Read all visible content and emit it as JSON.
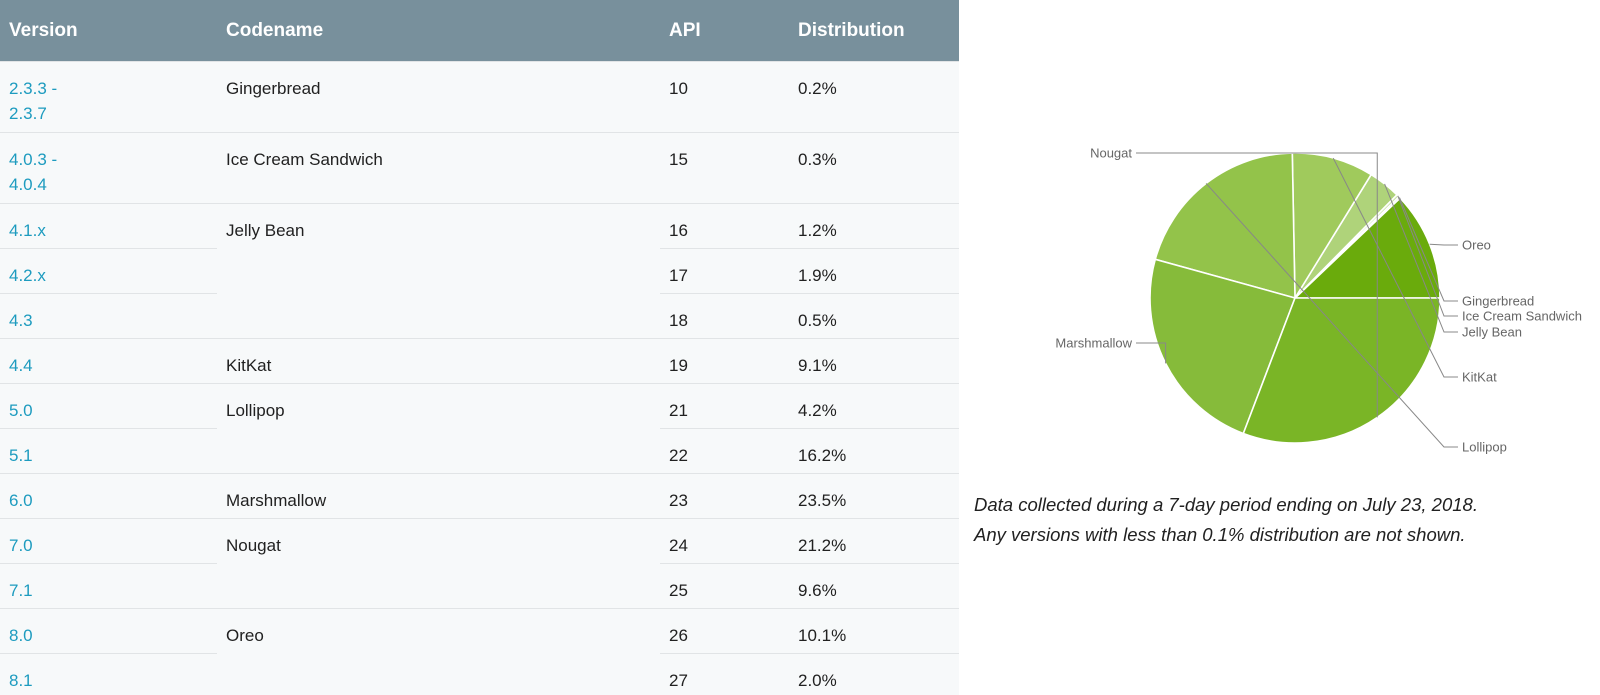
{
  "table": {
    "headers": [
      "Version",
      "Codename",
      "API",
      "Distribution"
    ],
    "rows": [
      {
        "version": "2.3.3 -\n2.3.7",
        "codename": "Gingerbread",
        "codename_span": 1,
        "api": "10",
        "dist": "0.2%"
      },
      {
        "version": "4.0.3 -\n4.0.4",
        "codename": "Ice Cream Sandwich",
        "codename_span": 1,
        "api": "15",
        "dist": "0.3%"
      },
      {
        "version": "4.1.x",
        "codename": "Jelly Bean",
        "codename_span": 3,
        "api": "16",
        "dist": "1.2%"
      },
      {
        "version": "4.2.x",
        "codename": null,
        "api": "17",
        "dist": "1.9%"
      },
      {
        "version": "4.3",
        "codename": null,
        "api": "18",
        "dist": "0.5%"
      },
      {
        "version": "4.4",
        "codename": "KitKat",
        "codename_span": 1,
        "api": "19",
        "dist": "9.1%"
      },
      {
        "version": "5.0",
        "codename": "Lollipop",
        "codename_span": 2,
        "api": "21",
        "dist": "4.2%"
      },
      {
        "version": "5.1",
        "codename": null,
        "api": "22",
        "dist": "16.2%"
      },
      {
        "version": "6.0",
        "codename": "Marshmallow",
        "codename_span": 1,
        "api": "23",
        "dist": "23.5%"
      },
      {
        "version": "7.0",
        "codename": "Nougat",
        "codename_span": 2,
        "api": "24",
        "dist": "21.2%"
      },
      {
        "version": "7.1",
        "codename": null,
        "api": "25",
        "dist": "9.6%"
      },
      {
        "version": "8.0",
        "codename": "Oreo",
        "codename_span": 2,
        "api": "26",
        "dist": "10.1%"
      },
      {
        "version": "8.1",
        "codename": null,
        "api": "27",
        "dist": "2.0%"
      }
    ]
  },
  "chart_data": {
    "type": "pie",
    "categories": [
      "Oreo",
      "Gingerbread",
      "Ice Cream Sandwich",
      "Jelly Bean",
      "KitKat",
      "Lollipop",
      "Marshmallow",
      "Nougat"
    ],
    "values": [
      12.1,
      0.2,
      0.3,
      3.6,
      9.1,
      20.4,
      23.5,
      30.8
    ],
    "colors": [
      "#6aab0c",
      "#dbe9c4",
      "#c8e0a3",
      "#afd37a",
      "#a0ca5c",
      "#93c34a",
      "#86bb3a",
      "#7ab526"
    ],
    "start_angle": "east, going counter-clockwise"
  },
  "caption": {
    "line1": "Data collected during a 7-day period ending on July 23, 2018.",
    "line2": "Any versions with less than 0.1% distribution are not shown."
  }
}
